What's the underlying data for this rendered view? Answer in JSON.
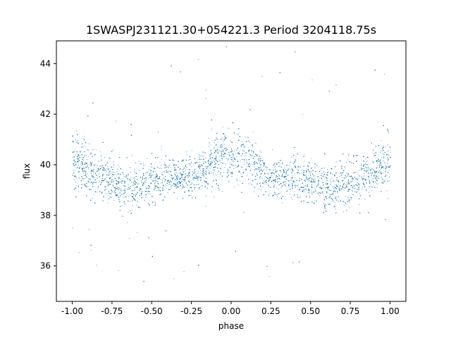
{
  "chart_data": {
    "type": "scatter",
    "title": "1SWASPJ231121.30+054221.3 Period 3204118.75s",
    "xlabel": "phase",
    "ylabel": "flux",
    "xlim": [
      -1.1,
      1.1
    ],
    "ylim": [
      34.6,
      44.9
    ],
    "xticks": [
      "-1.00",
      "-0.75",
      "-0.50",
      "-0.25",
      "0.00",
      "0.25",
      "0.50",
      "0.75",
      "1.00"
    ],
    "yticks": [
      "36",
      "38",
      "40",
      "42",
      "44"
    ],
    "x_range": [
      -1.0,
      1.0
    ],
    "point_color": "#1f77b4",
    "profile": {
      "phase": [
        0.0,
        0.05,
        0.1,
        0.15,
        0.2,
        0.25,
        0.3,
        0.35,
        0.4,
        0.45,
        0.5,
        0.55,
        0.6,
        0.65,
        0.7,
        0.75,
        0.8,
        0.85,
        0.9,
        0.95,
        1.0
      ],
      "median_flux": [
        40.2,
        40.4,
        40.2,
        39.9,
        39.7,
        39.6,
        39.5,
        39.5,
        39.6,
        39.5,
        39.4,
        39.3,
        39.2,
        39.1,
        39.1,
        39.3,
        39.5,
        39.7,
        39.8,
        40.0,
        40.2
      ],
      "scatter": [
        0.8,
        0.9,
        0.9,
        0.8,
        0.7,
        0.7,
        0.6,
        0.6,
        0.7,
        0.7,
        0.7,
        0.8,
        0.8,
        0.8,
        0.9,
        0.8,
        0.8,
        0.8,
        0.8,
        0.9,
        0.9
      ]
    },
    "grid": false,
    "legend": "none"
  }
}
